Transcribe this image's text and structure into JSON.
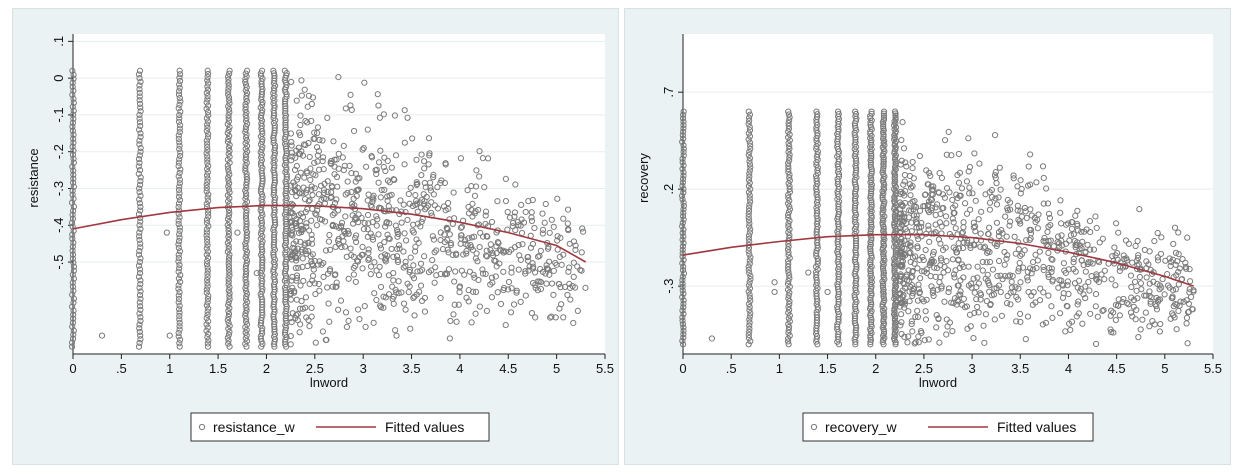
{
  "chart_data": [
    {
      "type": "scatter",
      "title": "",
      "xlabel": "lnword",
      "ylabel": "resistance",
      "xlim": [
        0,
        5.5
      ],
      "ylim": [
        -0.75,
        0.12
      ],
      "x_ticks": [
        0,
        0.5,
        1,
        1.5,
        2,
        2.5,
        3,
        3.5,
        4,
        4.5,
        5,
        5.5
      ],
      "x_tick_labels": [
        "0",
        ".5",
        "1",
        "1.5",
        "2",
        "2.5",
        "3",
        "3.5",
        "4",
        "4.5",
        "5",
        "5.5"
      ],
      "y_ticks": [
        0.1,
        0,
        -0.1,
        -0.2,
        -0.3,
        -0.4,
        -0.5
      ],
      "y_tick_labels": [
        ".1",
        "0",
        "-.1",
        "-.2",
        "-.3",
        "-.4",
        "-.5"
      ],
      "grid": true,
      "scatter_series": {
        "name": "resistance_w",
        "marker": "hollow-circle",
        "color": "#7a7a7a",
        "description": "dense vertical columns at x = 0, 0.69, 1.10, 1.39, 1.61, 1.79, 1.95, 2.08, 2.2; cloud thinning out to x≈5.3",
        "summary": {
          "column_x": [
            0,
            0.69,
            1.1,
            1.39,
            1.61,
            1.79,
            1.95,
            2.08,
            2.2
          ],
          "y_min": -0.73,
          "y_max": 0.02,
          "x_max": 5.3
        }
      },
      "fitted_series": {
        "name": "Fitted values",
        "color": "#a0393f",
        "type": "quadratic",
        "x": [
          0,
          0.5,
          1,
          1.5,
          2,
          2.5,
          3,
          3.5,
          4,
          4.5,
          5,
          5.3
        ],
        "values": [
          -0.41,
          -0.385,
          -0.365,
          -0.352,
          -0.346,
          -0.347,
          -0.355,
          -0.37,
          -0.392,
          -0.42,
          -0.455,
          -0.5
        ]
      },
      "legend": [
        "resistance_w",
        "Fitted values"
      ],
      "legend_position": "bottom"
    },
    {
      "type": "scatter",
      "title": "",
      "xlabel": "lnword",
      "ylabel": "recovery",
      "xlim": [
        0,
        5.5
      ],
      "ylim": [
        -0.65,
        1.0
      ],
      "x_ticks": [
        0,
        0.5,
        1,
        1.5,
        2,
        2.5,
        3,
        3.5,
        4,
        4.5,
        5,
        5.5
      ],
      "x_tick_labels": [
        "0",
        ".5",
        "1",
        "1.5",
        "2",
        "2.5",
        "3",
        "3.5",
        "4",
        "4.5",
        "5",
        "5.5"
      ],
      "y_ticks": [
        0.7,
        0.2,
        -0.3
      ],
      "y_tick_labels": [
        ".7",
        ".2",
        "-.3"
      ],
      "grid": true,
      "scatter_series": {
        "name": "recovery_w",
        "marker": "hollow-circle",
        "color": "#7a7a7a",
        "description": "dense vertical columns at x = 0, 0.69, 1.10, 1.39, 1.61, 1.79, 1.95, 2.08, 2.2; cloud thinning out to x≈5.3",
        "summary": {
          "column_x": [
            0,
            0.69,
            1.1,
            1.39,
            1.61,
            1.79,
            1.95,
            2.08,
            2.2
          ],
          "y_min": -0.6,
          "y_max": 0.6,
          "x_max": 5.3
        }
      },
      "fitted_series": {
        "name": "Fitted values",
        "color": "#a0393f",
        "type": "quadratic",
        "x": [
          0,
          0.5,
          1,
          1.5,
          2,
          2.5,
          3,
          3.5,
          4,
          4.5,
          5,
          5.3
        ],
        "values": [
          -0.14,
          -0.1,
          -0.07,
          -0.045,
          -0.035,
          -0.035,
          -0.05,
          -0.08,
          -0.125,
          -0.18,
          -0.25,
          -0.3
        ]
      },
      "legend": [
        "recovery_w",
        "Fitted values"
      ],
      "legend_position": "bottom"
    }
  ]
}
